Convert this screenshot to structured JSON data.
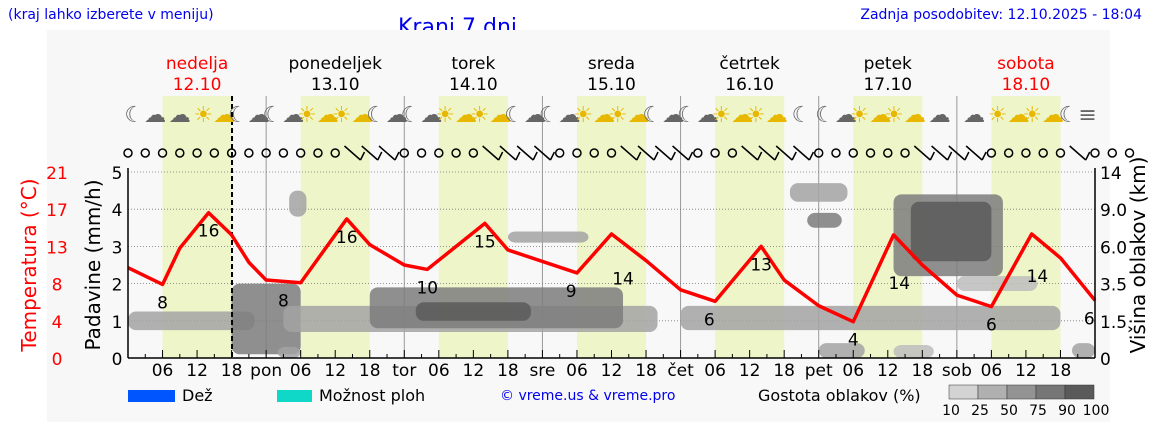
{
  "header": {
    "hint": "(kraj lahko izberete v meniju)",
    "title": "Kranj 7 dni",
    "updated": "Zadnja posodobitev: 12.10.2025 - 18:04"
  },
  "days": [
    {
      "name": "nedelja",
      "date": "12.10",
      "weekend": true
    },
    {
      "name": "ponedeljek",
      "date": "13.10",
      "weekend": false
    },
    {
      "name": "torek",
      "date": "14.10",
      "weekend": false
    },
    {
      "name": "sreda",
      "date": "15.10",
      "weekend": false
    },
    {
      "name": "četrtek",
      "date": "16.10",
      "weekend": false
    },
    {
      "name": "petek",
      "date": "17.10",
      "weekend": false
    },
    {
      "name": "sobota",
      "date": "18.10",
      "weekend": true
    }
  ],
  "weather_icons": [
    "moon-cloud",
    "cloud",
    "sun-cloud",
    "moon-cloud",
    "moon-cloud",
    "sun-cloud",
    "sun-cloud",
    "moon-cloud",
    "moon-cloud",
    "sun-cloud",
    "sun-cloud",
    "moon-cloud",
    "moon-cloud",
    "sun-cloud",
    "sun-cloud",
    "moon-cloud",
    "moon-cloud",
    "sun-cloud",
    "sun-cloud",
    "moon",
    "moon-cloud",
    "sun-cloud",
    "sun-cloud",
    "cloud",
    "cloud",
    "sun-cloud",
    "sun-cloud",
    "fog"
  ],
  "wind": "cccccccccccccbbbcccccbbbbccccbbbbcccbbbbccccccbbbbcccccbccc",
  "colors": {
    "temperature": "#ff0000",
    "day_band": "#eef5c8",
    "rain": "#0055ff",
    "storm": "#10d8c8",
    "link": "#0000ee"
  },
  "chart_data": {
    "type": "line",
    "title": "Kranj 7 dni",
    "xlabel": "",
    "ylabel_left_temp": "Temperatura (°C)",
    "ylabel_left_precip": "Padavine (mm/h)",
    "ylabel_right": "Višina oblakov (km)",
    "temp_ticks": [
      "0",
      "4",
      "8",
      "13",
      "17",
      "21"
    ],
    "precip_ticks": [
      "0",
      "1",
      "2",
      "3",
      "4",
      "5"
    ],
    "cloud_height_ticks": [
      "0",
      "1.5",
      "3.5",
      "6.0",
      "9.0",
      "14"
    ],
    "xlim_hours": [
      0,
      168
    ],
    "precip_ylim": [
      0,
      5
    ],
    "temp_ylim": [
      0,
      21
    ],
    "now_hour": 18.07,
    "x_tick_labels": [
      "06",
      "12",
      "18",
      "pon",
      "06",
      "12",
      "18",
      "tor",
      "06",
      "12",
      "18",
      "sre",
      "06",
      "12",
      "18",
      "čet",
      "06",
      "12",
      "18",
      "pet",
      "06",
      "12",
      "18",
      "sob",
      "06",
      "12",
      "18"
    ],
    "temperature": {
      "name": "Temperatura",
      "hours": [
        0,
        6,
        9,
        14,
        18,
        21,
        24,
        30,
        38,
        42,
        48,
        52,
        62,
        66,
        78,
        84,
        90,
        96,
        102,
        110,
        114,
        120,
        126,
        133,
        138,
        144,
        150,
        157,
        162,
        168
      ],
      "values": [
        10.2,
        8.3,
        12.4,
        16.4,
        13.9,
        10.8,
        8.8,
        8.5,
        15.7,
        12.8,
        10.5,
        10.0,
        15.2,
        12.2,
        9.6,
        14.0,
        11.0,
        7.7,
        6.4,
        12.6,
        8.8,
        5.9,
        4.1,
        13.9,
        10.5,
        7.1,
        5.8,
        14.0,
        11.3,
        6.5
      ]
    },
    "temp_labels": [
      {
        "hour": 6,
        "value": "8",
        "pos": "below"
      },
      {
        "hour": 14,
        "value": "16",
        "pos": "below"
      },
      {
        "hour": 27,
        "value": "8",
        "pos": "below"
      },
      {
        "hour": 38,
        "value": "16",
        "pos": "below"
      },
      {
        "hour": 52,
        "value": "10",
        "pos": "below"
      },
      {
        "hour": 62,
        "value": "15",
        "pos": "below"
      },
      {
        "hour": 77,
        "value": "9",
        "pos": "below"
      },
      {
        "hour": 86,
        "value": "14",
        "pos": "below"
      },
      {
        "hour": 101,
        "value": "6",
        "pos": "below"
      },
      {
        "hour": 110,
        "value": "13",
        "pos": "below"
      },
      {
        "hour": 126,
        "value": "4",
        "pos": "below"
      },
      {
        "hour": 134,
        "value": "14",
        "pos": "below"
      },
      {
        "hour": 150,
        "value": "6",
        "pos": "below"
      },
      {
        "hour": 158,
        "value": "14",
        "pos": "below"
      },
      {
        "hour": 167,
        "value": "6",
        "pos": "below"
      }
    ],
    "clouds": [
      {
        "h0": 0,
        "h1": 22,
        "lo": 0.75,
        "hi": 1.25,
        "density": 50
      },
      {
        "h0": 18,
        "h1": 30,
        "lo": 0.1,
        "hi": 2.0,
        "density": 75
      },
      {
        "h0": 26,
        "h1": 30,
        "lo": 0,
        "hi": 0.3,
        "density": 50
      },
      {
        "h0": 28,
        "h1": 31,
        "lo": 3.8,
        "hi": 4.5,
        "density": 50
      },
      {
        "h0": 27,
        "h1": 92,
        "lo": 0.7,
        "hi": 1.4,
        "density": 50
      },
      {
        "h0": 42,
        "h1": 86,
        "lo": 0.8,
        "hi": 1.9,
        "density": 75
      },
      {
        "h0": 50,
        "h1": 70,
        "lo": 1.0,
        "hi": 1.5,
        "density": 90
      },
      {
        "h0": 66,
        "h1": 80,
        "lo": 3.1,
        "hi": 3.4,
        "density": 50
      },
      {
        "h0": 96,
        "h1": 162,
        "lo": 0.75,
        "hi": 1.4,
        "density": 50
      },
      {
        "h0": 115,
        "h1": 125,
        "lo": 4.2,
        "hi": 4.7,
        "density": 50
      },
      {
        "h0": 118,
        "h1": 124,
        "lo": 3.5,
        "hi": 3.9,
        "density": 75
      },
      {
        "h0": 133,
        "h1": 152,
        "lo": 2.2,
        "hi": 4.4,
        "density": 75
      },
      {
        "h0": 136,
        "h1": 150,
        "lo": 2.6,
        "hi": 4.2,
        "density": 90
      },
      {
        "h0": 120,
        "h1": 128,
        "lo": 0,
        "hi": 0.4,
        "density": 50
      },
      {
        "h0": 144,
        "h1": 158,
        "lo": 1.8,
        "hi": 2.2,
        "density": 25
      },
      {
        "h0": 133,
        "h1": 140,
        "lo": 0,
        "hi": 0.35,
        "density": 25
      },
      {
        "h0": 164,
        "h1": 168,
        "lo": 0,
        "hi": 0.4,
        "density": 50
      }
    ]
  },
  "legend": {
    "rain": "Dež",
    "storm": "Možnost ploh",
    "credit": "© vreme.us & vreme.pro",
    "cloud_density": "Gostota oblakov (%)",
    "density_levels": [
      "10",
      "25",
      "50",
      "75",
      "90",
      "100"
    ]
  }
}
